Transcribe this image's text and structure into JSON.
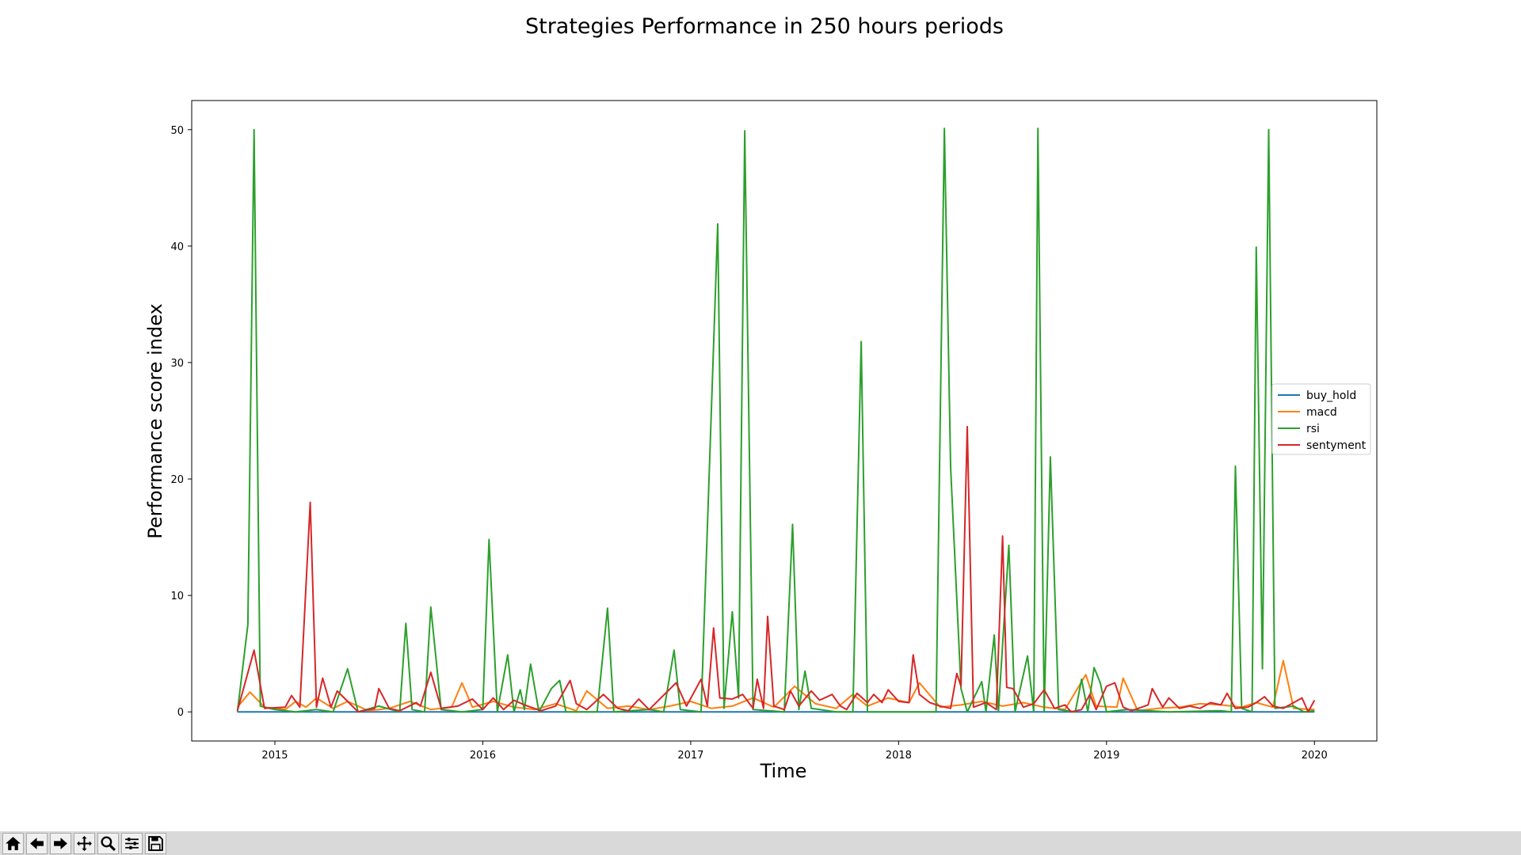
{
  "chart_data": {
    "type": "line",
    "title": "Strategies Performance in 250 hours periods",
    "xlabel": "Time",
    "ylabel": "Performance score index",
    "xlim": [
      2014.6,
      2020.3
    ],
    "ylim": [
      -2.5,
      52.5
    ],
    "xticks": [
      2015,
      2016,
      2017,
      2018,
      2019,
      2020
    ],
    "xtick_labels": [
      "2015",
      "2016",
      "2017",
      "2018",
      "2019",
      "2020"
    ],
    "yticks": [
      0,
      10,
      20,
      30,
      40,
      50
    ],
    "ytick_labels": [
      "0",
      "10",
      "20",
      "30",
      "40",
      "50"
    ],
    "legend_position": "center-right",
    "grid": false,
    "series": [
      {
        "name": "buy_hold",
        "color": "#1f77b4",
        "points": [
          [
            2014.82,
            0.0
          ],
          [
            2020.0,
            0.0
          ]
        ]
      },
      {
        "name": "macd",
        "color": "#ff7f0e",
        "points": [
          [
            2014.82,
            0.4
          ],
          [
            2014.88,
            1.7
          ],
          [
            2014.95,
            0.4
          ],
          [
            2015.05,
            0.2
          ],
          [
            2015.1,
            0.9
          ],
          [
            2015.15,
            0.4
          ],
          [
            2015.2,
            1.2
          ],
          [
            2015.28,
            0.3
          ],
          [
            2015.35,
            0.9
          ],
          [
            2015.45,
            0.1
          ],
          [
            2015.55,
            0.3
          ],
          [
            2015.65,
            0.9
          ],
          [
            2015.75,
            0.2
          ],
          [
            2015.85,
            0.4
          ],
          [
            2015.9,
            2.5
          ],
          [
            2015.95,
            0.4
          ],
          [
            2016.05,
            0.9
          ],
          [
            2016.15,
            0.4
          ],
          [
            2016.25,
            0.2
          ],
          [
            2016.35,
            0.7
          ],
          [
            2016.45,
            0.1
          ],
          [
            2016.5,
            1.8
          ],
          [
            2016.6,
            0.3
          ],
          [
            2016.7,
            0.5
          ],
          [
            2016.8,
            0.2
          ],
          [
            2016.9,
            0.5
          ],
          [
            2017.0,
            0.9
          ],
          [
            2017.1,
            0.3
          ],
          [
            2017.2,
            0.5
          ],
          [
            2017.3,
            1.2
          ],
          [
            2017.4,
            0.4
          ],
          [
            2017.5,
            2.2
          ],
          [
            2017.6,
            0.7
          ],
          [
            2017.7,
            0.3
          ],
          [
            2017.78,
            1.5
          ],
          [
            2017.85,
            0.5
          ],
          [
            2017.95,
            1.2
          ],
          [
            2018.05,
            0.8
          ],
          [
            2018.1,
            2.5
          ],
          [
            2018.2,
            0.4
          ],
          [
            2018.3,
            0.6
          ],
          [
            2018.4,
            0.9
          ],
          [
            2018.5,
            0.5
          ],
          [
            2018.6,
            0.8
          ],
          [
            2018.7,
            0.4
          ],
          [
            2018.8,
            0.2
          ],
          [
            2018.9,
            3.2
          ],
          [
            2018.95,
            0.5
          ],
          [
            2019.05,
            0.4
          ],
          [
            2019.08,
            2.9
          ],
          [
            2019.15,
            0.1
          ],
          [
            2019.25,
            0.3
          ],
          [
            2019.35,
            0.4
          ],
          [
            2019.45,
            0.7
          ],
          [
            2019.55,
            0.6
          ],
          [
            2019.65,
            0.4
          ],
          [
            2019.72,
            0.8
          ],
          [
            2019.8,
            0.4
          ],
          [
            2019.85,
            4.4
          ],
          [
            2019.9,
            0.3
          ],
          [
            2020.0,
            0.2
          ]
        ]
      },
      {
        "name": "rsi",
        "color": "#2ca02c",
        "points": [
          [
            2014.82,
            0.0
          ],
          [
            2014.87,
            7.5
          ],
          [
            2014.9,
            50.0
          ],
          [
            2014.93,
            0.5
          ],
          [
            2015.0,
            0.2
          ],
          [
            2015.1,
            0.0
          ],
          [
            2015.2,
            0.2
          ],
          [
            2015.28,
            0.0
          ],
          [
            2015.35,
            3.7
          ],
          [
            2015.4,
            0.0
          ],
          [
            2015.5,
            0.5
          ],
          [
            2015.6,
            0.0
          ],
          [
            2015.63,
            7.6
          ],
          [
            2015.66,
            0.2
          ],
          [
            2015.72,
            0.0
          ],
          [
            2015.75,
            9.0
          ],
          [
            2015.8,
            0.2
          ],
          [
            2015.9,
            0.0
          ],
          [
            2016.0,
            0.2
          ],
          [
            2016.03,
            14.8
          ],
          [
            2016.07,
            0.0
          ],
          [
            2016.12,
            4.9
          ],
          [
            2016.15,
            0.0
          ],
          [
            2016.18,
            1.9
          ],
          [
            2016.2,
            0.2
          ],
          [
            2016.23,
            4.1
          ],
          [
            2016.27,
            0.0
          ],
          [
            2016.33,
            2.0
          ],
          [
            2016.37,
            2.7
          ],
          [
            2016.4,
            0.0
          ],
          [
            2016.55,
            0.0
          ],
          [
            2016.6,
            8.9
          ],
          [
            2016.63,
            0.0
          ],
          [
            2016.8,
            0.2
          ],
          [
            2016.87,
            0.0
          ],
          [
            2016.92,
            5.3
          ],
          [
            2016.95,
            0.2
          ],
          [
            2017.05,
            0.0
          ],
          [
            2017.13,
            41.9
          ],
          [
            2017.16,
            0.3
          ],
          [
            2017.2,
            8.6
          ],
          [
            2017.23,
            1.2
          ],
          [
            2017.26,
            49.9
          ],
          [
            2017.3,
            0.2
          ],
          [
            2017.45,
            0.0
          ],
          [
            2017.49,
            16.1
          ],
          [
            2017.52,
            0.2
          ],
          [
            2017.55,
            3.5
          ],
          [
            2017.58,
            0.3
          ],
          [
            2017.7,
            0.0
          ],
          [
            2017.78,
            0.0
          ],
          [
            2017.82,
            31.8
          ],
          [
            2017.85,
            0.0
          ],
          [
            2018.1,
            0.0
          ],
          [
            2018.18,
            0.0
          ],
          [
            2018.22,
            50.1
          ],
          [
            2018.25,
            21.0
          ],
          [
            2018.3,
            2.0
          ],
          [
            2018.33,
            0.0
          ],
          [
            2018.4,
            2.6
          ],
          [
            2018.42,
            0.0
          ],
          [
            2018.46,
            6.6
          ],
          [
            2018.48,
            0.0
          ],
          [
            2018.53,
            14.3
          ],
          [
            2018.56,
            0.0
          ],
          [
            2018.62,
            4.8
          ],
          [
            2018.65,
            0.0
          ],
          [
            2018.67,
            50.1
          ],
          [
            2018.7,
            0.0
          ],
          [
            2018.73,
            21.9
          ],
          [
            2018.77,
            0.2
          ],
          [
            2018.85,
            0.0
          ],
          [
            2018.88,
            2.8
          ],
          [
            2018.91,
            0.0
          ],
          [
            2018.94,
            3.8
          ],
          [
            2018.97,
            2.5
          ],
          [
            2019.0,
            0.0
          ],
          [
            2019.1,
            0.2
          ],
          [
            2019.3,
            0.0
          ],
          [
            2019.55,
            0.1
          ],
          [
            2019.6,
            0.0
          ],
          [
            2019.62,
            21.1
          ],
          [
            2019.65,
            0.3
          ],
          [
            2019.7,
            0.0
          ],
          [
            2019.72,
            39.9
          ],
          [
            2019.75,
            3.7
          ],
          [
            2019.78,
            50.0
          ],
          [
            2019.81,
            0.3
          ],
          [
            2019.9,
            0.5
          ],
          [
            2019.95,
            0.0
          ],
          [
            2020.0,
            0.1
          ]
        ]
      },
      {
        "name": "sentyment",
        "color": "#d62728",
        "points": [
          [
            2014.82,
            0.1
          ],
          [
            2014.9,
            5.3
          ],
          [
            2014.95,
            0.3
          ],
          [
            2015.05,
            0.4
          ],
          [
            2015.08,
            1.4
          ],
          [
            2015.12,
            0.4
          ],
          [
            2015.17,
            18.0
          ],
          [
            2015.2,
            0.4
          ],
          [
            2015.23,
            2.9
          ],
          [
            2015.27,
            0.4
          ],
          [
            2015.3,
            1.8
          ],
          [
            2015.35,
            0.9
          ],
          [
            2015.4,
            0.0
          ],
          [
            2015.48,
            0.3
          ],
          [
            2015.5,
            2.0
          ],
          [
            2015.55,
            0.3
          ],
          [
            2015.6,
            0.1
          ],
          [
            2015.68,
            0.8
          ],
          [
            2015.7,
            0.5
          ],
          [
            2015.75,
            3.4
          ],
          [
            2015.8,
            0.3
          ],
          [
            2015.88,
            0.5
          ],
          [
            2015.95,
            1.1
          ],
          [
            2016.0,
            0.2
          ],
          [
            2016.05,
            1.2
          ],
          [
            2016.1,
            0.2
          ],
          [
            2016.15,
            1.0
          ],
          [
            2016.2,
            0.6
          ],
          [
            2016.28,
            0.1
          ],
          [
            2016.35,
            0.5
          ],
          [
            2016.42,
            2.7
          ],
          [
            2016.45,
            0.7
          ],
          [
            2016.5,
            0.2
          ],
          [
            2016.58,
            1.5
          ],
          [
            2016.65,
            0.3
          ],
          [
            2016.7,
            0.1
          ],
          [
            2016.75,
            1.1
          ],
          [
            2016.8,
            0.2
          ],
          [
            2016.93,
            2.5
          ],
          [
            2016.98,
            0.5
          ],
          [
            2017.05,
            2.8
          ],
          [
            2017.08,
            0.5
          ],
          [
            2017.11,
            7.2
          ],
          [
            2017.14,
            1.2
          ],
          [
            2017.2,
            1.1
          ],
          [
            2017.25,
            1.5
          ],
          [
            2017.3,
            0.3
          ],
          [
            2017.32,
            2.8
          ],
          [
            2017.35,
            0.3
          ],
          [
            2017.37,
            8.2
          ],
          [
            2017.4,
            0.5
          ],
          [
            2017.45,
            0.2
          ],
          [
            2017.48,
            1.8
          ],
          [
            2017.52,
            0.5
          ],
          [
            2017.58,
            1.8
          ],
          [
            2017.62,
            1.0
          ],
          [
            2017.68,
            1.5
          ],
          [
            2017.72,
            0.5
          ],
          [
            2017.75,
            0.2
          ],
          [
            2017.8,
            1.6
          ],
          [
            2017.85,
            0.8
          ],
          [
            2017.88,
            1.5
          ],
          [
            2017.92,
            0.8
          ],
          [
            2017.95,
            1.9
          ],
          [
            2018.0,
            0.9
          ],
          [
            2018.05,
            0.8
          ],
          [
            2018.07,
            4.9
          ],
          [
            2018.1,
            1.5
          ],
          [
            2018.15,
            0.8
          ],
          [
            2018.2,
            0.5
          ],
          [
            2018.25,
            0.3
          ],
          [
            2018.28,
            3.3
          ],
          [
            2018.3,
            2.2
          ],
          [
            2018.33,
            24.5
          ],
          [
            2018.36,
            0.4
          ],
          [
            2018.42,
            0.8
          ],
          [
            2018.47,
            0.2
          ],
          [
            2018.5,
            15.1
          ],
          [
            2018.52,
            2.1
          ],
          [
            2018.55,
            2.0
          ],
          [
            2018.6,
            0.4
          ],
          [
            2018.65,
            0.7
          ],
          [
            2018.7,
            1.9
          ],
          [
            2018.75,
            0.3
          ],
          [
            2018.8,
            0.6
          ],
          [
            2018.83,
            0.0
          ],
          [
            2018.88,
            0.2
          ],
          [
            2018.92,
            1.5
          ],
          [
            2018.95,
            0.2
          ],
          [
            2019.0,
            2.2
          ],
          [
            2019.04,
            2.5
          ],
          [
            2019.08,
            0.4
          ],
          [
            2019.12,
            0.1
          ],
          [
            2019.2,
            0.6
          ],
          [
            2019.22,
            2.0
          ],
          [
            2019.27,
            0.4
          ],
          [
            2019.3,
            1.2
          ],
          [
            2019.35,
            0.3
          ],
          [
            2019.4,
            0.5
          ],
          [
            2019.45,
            0.3
          ],
          [
            2019.5,
            0.8
          ],
          [
            2019.55,
            0.6
          ],
          [
            2019.58,
            1.6
          ],
          [
            2019.62,
            0.3
          ],
          [
            2019.68,
            0.4
          ],
          [
            2019.72,
            0.8
          ],
          [
            2019.76,
            1.3
          ],
          [
            2019.8,
            0.5
          ],
          [
            2019.85,
            0.3
          ],
          [
            2019.9,
            0.8
          ],
          [
            2019.94,
            1.2
          ],
          [
            2019.97,
            0.0
          ],
          [
            2020.0,
            1.0
          ]
        ]
      }
    ]
  },
  "toolbar": {
    "buttons": [
      {
        "icon": "home-icon"
      },
      {
        "icon": "back-arrow-icon"
      },
      {
        "icon": "forward-arrow-icon"
      },
      {
        "icon": "pan-icon"
      },
      {
        "icon": "zoom-icon"
      },
      {
        "icon": "configure-subplots-icon"
      },
      {
        "icon": "save-icon"
      }
    ]
  }
}
